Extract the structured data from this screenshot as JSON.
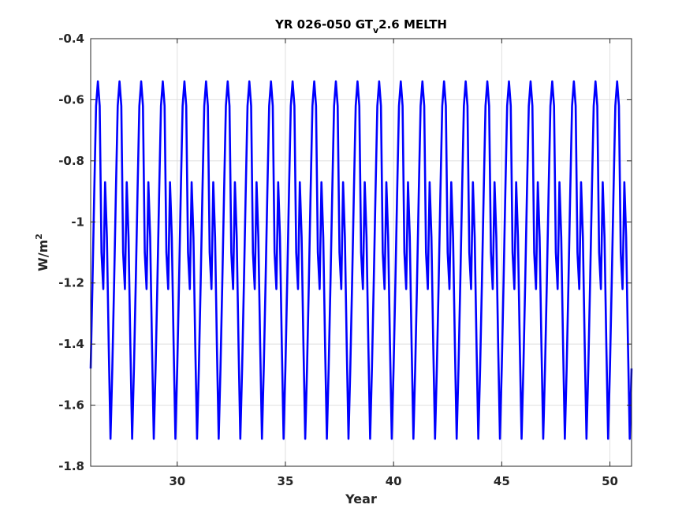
{
  "chart_data": {
    "type": "line",
    "title_main": "YR 026-050 GT",
    "title_sub": "v",
    "title_tail": "2.6 MELTH",
    "xlabel": "Year",
    "ylabel_base": "W/m",
    "ylabel_sup": "2",
    "xlim": [
      26,
      51
    ],
    "ylim": [
      -1.8,
      -0.4
    ],
    "xticks": [
      30,
      35,
      40,
      45,
      50
    ],
    "yticks": [
      -1.8,
      -1.6,
      -1.4,
      -1.2,
      -1,
      -0.8,
      -0.6,
      -0.4
    ],
    "ytick_labels": [
      "-1.8",
      "-1.6",
      "-1.4",
      "-1.2",
      "-1",
      "-0.8",
      "-0.6",
      "-0.4"
    ],
    "grid": true,
    "series": [
      {
        "color": "#0000ff",
        "period_years": 1.0,
        "start_year": 26.0,
        "end_year": 51.0,
        "monthly_cycle": [
          -1.48,
          -1.2,
          -0.9,
          -0.62,
          -0.54,
          -0.62,
          -1.1,
          -1.22,
          -0.87,
          -1.05,
          -1.4,
          -1.71
        ],
        "first_value": -1.48,
        "max": -0.54,
        "min": -1.71
      }
    ]
  }
}
